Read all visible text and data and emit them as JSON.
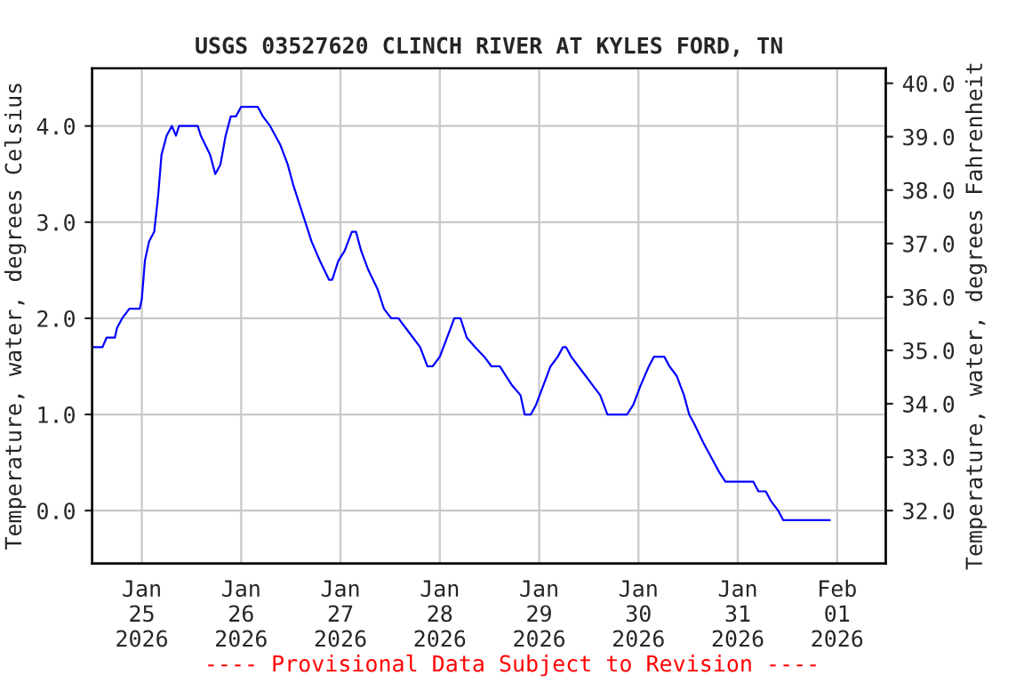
{
  "chart_data": {
    "type": "line",
    "title": "USGS 03527620 CLINCH RIVER AT KYLES FORD, TN",
    "ylabel": "Temperature, water, degrees Celsius",
    "y2label": "Temperature, water, degrees Fahrenheit",
    "annotations": [
      "---- Provisional Data Subject to Revision ----"
    ],
    "xlim": [
      "2026-01-24T12:00",
      "2026-02-01T11:45"
    ],
    "xticks": [
      {
        "value": "2026-01-25",
        "label": "Jan\n25\n2026"
      },
      {
        "value": "2026-01-26",
        "label": "Jan\n26\n2026"
      },
      {
        "value": "2026-01-27",
        "label": "Jan\n27\n2026"
      },
      {
        "value": "2026-01-28",
        "label": "Jan\n28\n2026"
      },
      {
        "value": "2026-01-29",
        "label": "Jan\n29\n2026"
      },
      {
        "value": "2026-01-30",
        "label": "Jan\n30\n2026"
      },
      {
        "value": "2026-01-31",
        "label": "Jan\n31\n2026"
      },
      {
        "value": "2026-02-01",
        "label": "Feb\n01\n2026"
      }
    ],
    "ylim": [
      -0.55,
      4.6
    ],
    "yticks": [
      {
        "value": 0,
        "label": "0.0"
      },
      {
        "value": 1,
        "label": "1.0"
      },
      {
        "value": 2,
        "label": "2.0"
      },
      {
        "value": 3,
        "label": "3.0"
      },
      {
        "value": 4,
        "label": "4.0"
      }
    ],
    "y2lim": [
      31.01,
      40.28
    ],
    "y2ticks": [
      {
        "value": 32,
        "label": "32.0"
      },
      {
        "value": 33,
        "label": "33.0"
      },
      {
        "value": 34,
        "label": "34.0"
      },
      {
        "value": 35,
        "label": "35.0"
      },
      {
        "value": 36,
        "label": "36.0"
      },
      {
        "value": 37,
        "label": "37.0"
      },
      {
        "value": 38,
        "label": "38.0"
      },
      {
        "value": 39,
        "label": "39.0"
      },
      {
        "value": 40,
        "label": "40.0"
      }
    ],
    "grid": true,
    "marker": "none",
    "line_style": "solid",
    "series": [
      {
        "color": "#0000ff",
        "x": [
          "2026-01-24T12:00",
          "2026-01-24T14:30",
          "2026-01-24T15:30",
          "2026-01-24T17:30",
          "2026-01-24T18:00",
          "2026-01-24T19:15",
          "2026-01-24T21:00",
          "2026-01-24T23:30",
          "2026-01-25T00:00",
          "2026-01-25T00:45",
          "2026-01-25T01:45",
          "2026-01-25T03:00",
          "2026-01-25T04:00",
          "2026-01-25T04:45",
          "2026-01-25T06:00",
          "2026-01-25T07:15",
          "2026-01-25T08:15",
          "2026-01-25T09:00",
          "2026-01-25T13:30",
          "2026-01-25T14:15",
          "2026-01-25T16:30",
          "2026-01-25T17:45",
          "2026-01-25T19:00",
          "2026-01-25T20:15",
          "2026-01-25T21:30",
          "2026-01-25T22:45",
          "2026-01-26T00:00",
          "2026-01-26T04:00",
          "2026-01-26T05:15",
          "2026-01-26T07:00",
          "2026-01-26T08:15",
          "2026-01-26T09:30",
          "2026-01-26T11:15",
          "2026-01-26T12:30",
          "2026-01-26T14:45",
          "2026-01-26T17:00",
          "2026-01-26T19:00",
          "2026-01-26T21:15",
          "2026-01-26T22:00",
          "2026-01-26T23:30",
          "2026-01-27T01:00",
          "2026-01-27T02:45",
          "2026-01-27T03:45",
          "2026-01-27T05:00",
          "2026-01-27T06:45",
          "2026-01-27T09:00",
          "2026-01-27T10:30",
          "2026-01-27T12:15",
          "2026-01-27T14:00",
          "2026-01-27T15:45",
          "2026-01-27T17:30",
          "2026-01-27T19:15",
          "2026-01-27T21:00",
          "2026-01-27T22:15",
          "2026-01-28T00:00",
          "2026-01-28T01:45",
          "2026-01-28T03:30",
          "2026-01-28T05:00",
          "2026-01-28T06:30",
          "2026-01-28T08:30",
          "2026-01-28T10:45",
          "2026-01-28T12:30",
          "2026-01-28T14:30",
          "2026-01-28T16:00",
          "2026-01-28T17:30",
          "2026-01-28T19:30",
          "2026-01-28T20:30",
          "2026-01-28T22:00",
          "2026-01-28T23:15",
          "2026-01-29T01:00",
          "2026-01-29T02:45",
          "2026-01-29T04:30",
          "2026-01-29T05:45",
          "2026-01-29T06:30",
          "2026-01-29T07:45",
          "2026-01-29T09:30",
          "2026-01-29T11:15",
          "2026-01-29T13:00",
          "2026-01-29T14:45",
          "2026-01-29T16:30",
          "2026-01-29T21:15",
          "2026-01-29T22:45",
          "2026-01-30T00:30",
          "2026-01-30T02:30",
          "2026-01-30T03:45",
          "2026-01-30T06:15",
          "2026-01-30T07:30",
          "2026-01-30T09:15",
          "2026-01-30T11:00",
          "2026-01-30T12:15",
          "2026-01-30T13:30",
          "2026-01-30T15:45",
          "2026-01-30T17:00",
          "2026-01-30T18:15",
          "2026-01-30T19:30",
          "2026-01-30T21:00",
          "2026-01-31T03:45",
          "2026-01-31T05:00",
          "2026-01-31T06:45",
          "2026-01-31T08:00",
          "2026-01-31T09:45",
          "2026-01-31T11:00",
          "2026-01-31T22:15"
        ],
        "values": [
          1.7,
          1.7,
          1.8,
          1.8,
          1.9,
          2.0,
          2.1,
          2.1,
          2.2,
          2.6,
          2.8,
          2.9,
          3.3,
          3.7,
          3.9,
          4.0,
          3.9,
          4.0,
          4.0,
          3.9,
          3.7,
          3.5,
          3.6,
          3.9,
          4.1,
          4.1,
          4.2,
          4.2,
          4.1,
          4.0,
          3.9,
          3.8,
          3.6,
          3.4,
          3.1,
          2.8,
          2.6,
          2.4,
          2.4,
          2.6,
          2.7,
          2.9,
          2.9,
          2.7,
          2.5,
          2.3,
          2.1,
          2.0,
          2.0,
          1.9,
          1.8,
          1.7,
          1.5,
          1.5,
          1.6,
          1.8,
          2.0,
          2.0,
          1.8,
          1.7,
          1.6,
          1.5,
          1.5,
          1.4,
          1.3,
          1.2,
          1.0,
          1.0,
          1.1,
          1.3,
          1.5,
          1.6,
          1.7,
          1.7,
          1.6,
          1.5,
          1.4,
          1.3,
          1.2,
          1.0,
          1.0,
          1.1,
          1.3,
          1.5,
          1.6,
          1.6,
          1.5,
          1.4,
          1.2,
          1.0,
          0.9,
          0.7,
          0.6,
          0.5,
          0.4,
          0.3,
          0.3,
          0.2,
          0.2,
          0.1,
          0.0,
          -0.1,
          -0.1
        ]
      }
    ]
  }
}
